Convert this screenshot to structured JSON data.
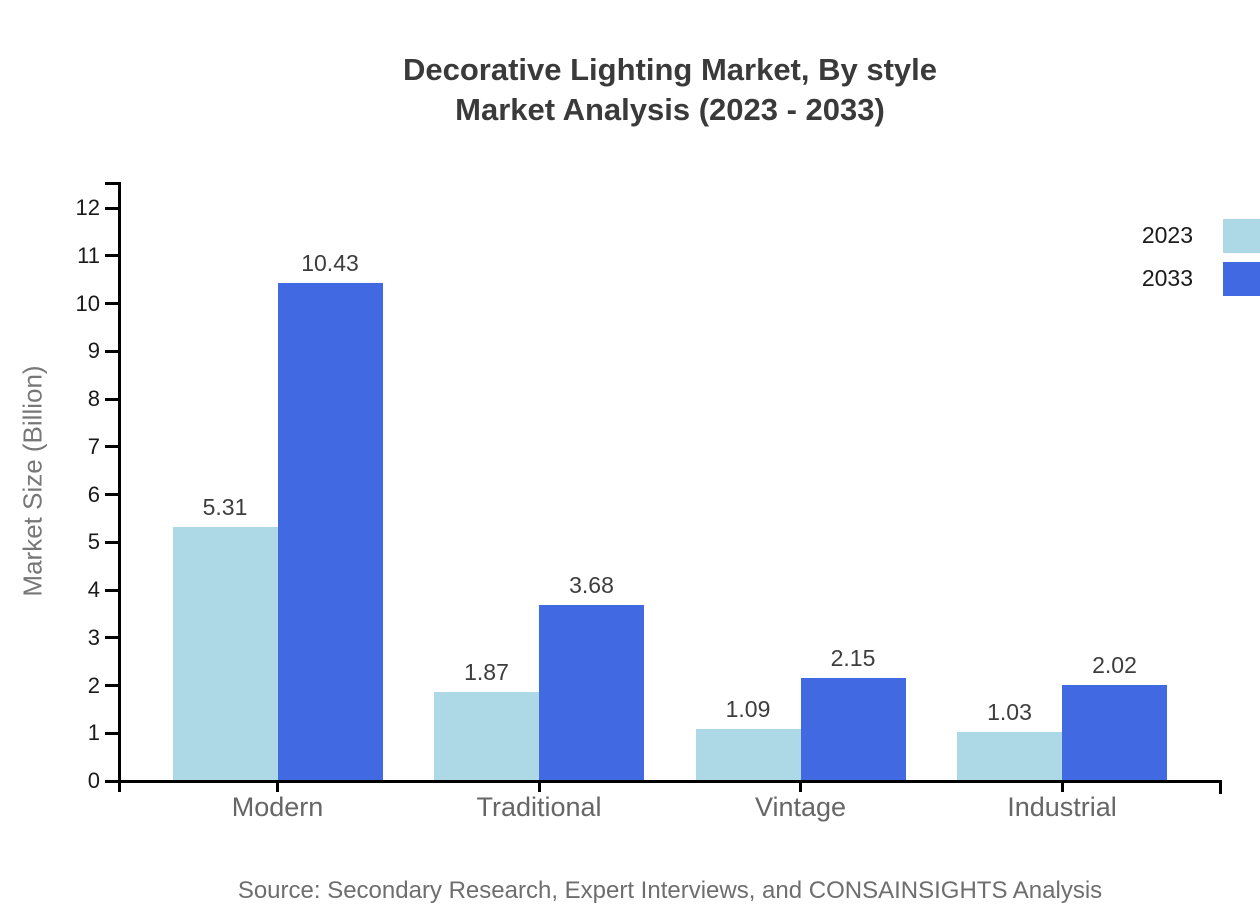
{
  "title": {
    "line1": "Decorative Lighting Market, By style",
    "line2": "Market Analysis (2023 - 2033)"
  },
  "source": "Source: Secondary Research, Expert Interviews, and CONSAINSIGHTS Analysis",
  "chart_data": {
    "type": "bar",
    "title": "Decorative Lighting Market, By style Market Analysis (2023 - 2033)",
    "categories": [
      "Modern",
      "Traditional",
      "Vintage",
      "Industrial"
    ],
    "series": [
      {
        "name": "2023",
        "color": "#ADD8E6",
        "values": [
          5.31,
          1.87,
          1.09,
          1.03
        ]
      },
      {
        "name": "2033",
        "color": "#4169E1",
        "values": [
          10.43,
          3.68,
          2.15,
          2.02
        ]
      }
    ],
    "xlabel": "",
    "ylabel": "Market Size (Billion)",
    "ylim": [
      0,
      12
    ],
    "ytick_step": 1,
    "grid": false,
    "legend_position": "top-right",
    "value_labels": true,
    "axis_color": "#000000"
  }
}
